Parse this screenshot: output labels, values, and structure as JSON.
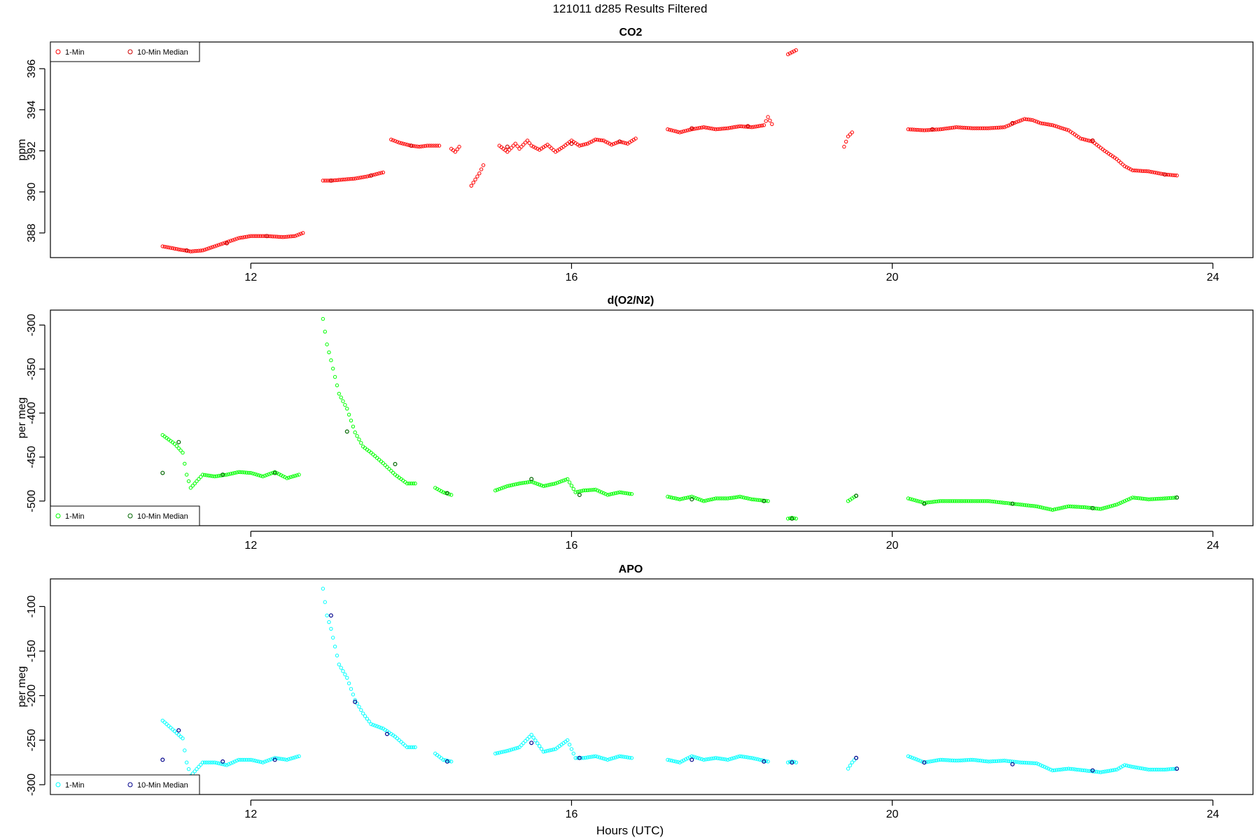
{
  "title": "121011   d285   Results Filtered",
  "xlabel": "Hours (UTC)",
  "chart_data": [
    {
      "type": "scatter",
      "title": "CO2",
      "xlabel": "Hours (UTC)",
      "ylabel": "ppm",
      "xlim": [
        9.5,
        24.5
      ],
      "ylim": [
        386.8,
        397.3
      ],
      "xticks": [
        12,
        16,
        20,
        24
      ],
      "yticks": [
        388,
        390,
        392,
        394,
        396
      ],
      "legend": {
        "position": "top-left",
        "entries": [
          "1-Min",
          "10-Min Median"
        ]
      },
      "colors": {
        "one_min": "#ff0000",
        "median": "#cc0000"
      },
      "series": [
        {
          "name": "1-Min",
          "segments": [
            {
              "x": [
                10.9,
                11.1,
                11.25,
                11.4,
                11.55,
                11.7,
                11.85,
                12.0,
                12.2,
                12.4,
                12.55,
                12.65
              ],
              "y": [
                387.35,
                387.2,
                387.1,
                387.15,
                387.35,
                387.55,
                387.75,
                387.85,
                387.85,
                387.8,
                387.85,
                388.0
              ]
            },
            {
              "x": [
                12.9,
                13.0,
                13.15,
                13.3,
                13.45,
                13.6,
                13.65
              ],
              "y": [
                390.55,
                390.55,
                390.6,
                390.65,
                390.75,
                390.9,
                390.95
              ]
            },
            {
              "x": [
                13.75,
                13.85,
                14.0,
                14.1,
                14.2,
                14.35
              ],
              "y": [
                392.55,
                392.4,
                392.25,
                392.2,
                392.25,
                392.25
              ]
            },
            {
              "x": [
                14.5,
                14.55,
                14.6
              ],
              "y": [
                392.1,
                391.95,
                392.2
              ]
            },
            {
              "x": [
                14.75,
                14.8,
                14.85,
                14.9
              ],
              "y": [
                390.3,
                390.6,
                390.9,
                391.3
              ]
            },
            {
              "x": [
                15.1,
                15.2,
                15.3,
                15.35,
                15.45,
                15.5,
                15.6,
                15.7,
                15.8,
                15.9,
                16.0,
                16.1,
                16.2,
                16.3,
                16.4,
                16.5,
                16.6,
                16.7,
                16.8
              ],
              "y": [
                392.25,
                391.95,
                392.35,
                392.1,
                392.5,
                392.25,
                392.05,
                392.3,
                391.95,
                392.2,
                392.5,
                392.25,
                392.35,
                392.55,
                392.5,
                392.3,
                392.45,
                392.35,
                392.6
              ]
            },
            {
              "x": [
                17.2,
                17.35,
                17.5,
                17.65,
                17.8,
                17.95,
                18.1,
                18.25,
                18.4,
                18.45,
                18.5
              ],
              "y": [
                393.05,
                392.9,
                393.05,
                393.15,
                393.05,
                393.1,
                393.2,
                393.15,
                393.25,
                393.65,
                393.3
              ]
            },
            {
              "x": [
                18.7,
                18.75,
                18.8
              ],
              "y": [
                396.7,
                396.8,
                396.9
              ]
            },
            {
              "x": [
                19.4,
                19.45,
                19.5
              ],
              "y": [
                392.2,
                392.7,
                392.9
              ]
            },
            {
              "x": [
                20.2,
                20.4,
                20.6,
                20.8,
                21.0,
                21.2,
                21.4,
                21.55,
                21.65,
                21.75,
                21.85,
                22.0,
                22.2,
                22.35,
                22.5,
                22.65,
                22.8,
                22.9,
                23.0,
                23.2,
                23.4,
                23.55
              ],
              "y": [
                393.05,
                393.0,
                393.05,
                393.15,
                393.1,
                393.1,
                393.15,
                393.4,
                393.55,
                393.5,
                393.35,
                393.25,
                393.0,
                392.6,
                392.45,
                392.0,
                391.6,
                391.25,
                391.05,
                391.0,
                390.85,
                390.8
              ]
            }
          ]
        },
        {
          "name": "10-Min Median",
          "segments": [
            {
              "x": [
                11.2,
                11.7,
                12.2,
                13.0,
                13.5,
                14.0,
                15.2,
                16.0,
                16.6,
                17.5,
                18.2,
                20.5,
                21.5,
                22.5,
                23.4
              ],
              "y": [
                387.15,
                387.5,
                387.85,
                390.55,
                390.8,
                392.25,
                392.2,
                392.35,
                392.45,
                393.1,
                393.2,
                393.05,
                393.35,
                392.5,
                390.85
              ]
            }
          ]
        }
      ]
    },
    {
      "type": "scatter",
      "title": "d(O2/N2)",
      "xlabel": "Hours (UTC)",
      "ylabel": "per meg",
      "xlim": [
        9.5,
        24.5
      ],
      "ylim": [
        -528,
        -283
      ],
      "xticks": [
        12,
        16,
        20,
        24
      ],
      "yticks": [
        -300,
        -350,
        -400,
        -450,
        -500
      ],
      "legend": {
        "position": "bottom-left",
        "entries": [
          "1-Min",
          "10-Min Median"
        ]
      },
      "colors": {
        "one_min": "#00ff00",
        "median": "#006600"
      },
      "series": [
        {
          "name": "1-Min",
          "segments": [
            {
              "x": [
                10.9,
                11.05,
                11.15,
                11.2,
                11.25,
                11.4,
                11.55,
                11.7,
                11.85,
                12.0,
                12.15,
                12.3,
                12.45,
                12.6
              ],
              "y": [
                -425,
                -435,
                -445,
                -470,
                -485,
                -470,
                -472,
                -470,
                -467,
                -468,
                -472,
                -467,
                -474,
                -470
              ]
            },
            {
              "x": [
                12.9,
                12.95,
                13.0,
                13.1,
                13.2,
                13.3,
                13.4,
                13.5,
                13.65,
                13.8,
                13.95,
                14.05
              ],
              "y": [
                -293,
                -322,
                -340,
                -378,
                -395,
                -422,
                -438,
                -445,
                -457,
                -470,
                -480,
                -480
              ]
            },
            {
              "x": [
                14.3,
                14.4,
                14.5
              ],
              "y": [
                -485,
                -490,
                -493
              ]
            },
            {
              "x": [
                15.05,
                15.2,
                15.35,
                15.5,
                15.65,
                15.8,
                15.95,
                16.05,
                16.15,
                16.3,
                16.45,
                16.6,
                16.75
              ],
              "y": [
                -488,
                -483,
                -480,
                -478,
                -483,
                -480,
                -475,
                -490,
                -488,
                -487,
                -493,
                -490,
                -492
              ]
            },
            {
              "x": [
                17.2,
                17.35,
                17.5,
                17.65,
                17.8,
                17.95,
                18.1,
                18.25,
                18.45
              ],
              "y": [
                -495,
                -498,
                -495,
                -500,
                -497,
                -497,
                -495,
                -498,
                -500
              ]
            },
            {
              "x": [
                18.7,
                18.75,
                18.8
              ],
              "y": [
                -520,
                -519,
                -520
              ]
            },
            {
              "x": [
                19.45,
                19.5,
                19.55
              ],
              "y": [
                -500,
                -497,
                -494
              ]
            },
            {
              "x": [
                20.2,
                20.4,
                20.6,
                20.8,
                21.0,
                21.2,
                21.4,
                21.6,
                21.8,
                22.0,
                22.2,
                22.4,
                22.6,
                22.8,
                22.9,
                23.0,
                23.2,
                23.4,
                23.55
              ],
              "y": [
                -497,
                -502,
                -500,
                -500,
                -500,
                -500,
                -502,
                -504,
                -506,
                -510,
                -506,
                -507,
                -509,
                -504,
                -500,
                -496,
                -498,
                -497,
                -496
              ]
            }
          ]
        },
        {
          "name": "10-Min Median",
          "segments": [
            {
              "x": [
                10.9,
                11.1,
                11.65,
                12.3,
                13.2,
                13.8,
                14.45,
                15.5,
                16.1,
                17.5,
                18.4,
                18.75,
                19.55,
                20.4,
                21.5,
                22.5,
                23.55
              ],
              "y": [
                -468,
                -433,
                -470,
                -468,
                -421,
                -458,
                -491,
                -475,
                -493,
                -498,
                -500,
                -520,
                -494,
                -503,
                -503,
                -508,
                -496
              ]
            }
          ]
        }
      ]
    },
    {
      "type": "scatter",
      "title": "APO",
      "xlabel": "Hours (UTC)",
      "ylabel": "per meg",
      "xlim": [
        9.5,
        24.5
      ],
      "ylim": [
        -311,
        -69
      ],
      "xticks": [
        12,
        16,
        20,
        24
      ],
      "yticks": [
        -100,
        -150,
        -200,
        -250,
        -300
      ],
      "legend": {
        "position": "bottom-left",
        "entries": [
          "1-Min",
          "10-Min Median"
        ]
      },
      "colors": {
        "one_min": "#00ffff",
        "median": "#00008b"
      },
      "series": [
        {
          "name": "1-Min",
          "segments": [
            {
              "x": [
                10.9,
                11.05,
                11.15,
                11.2,
                11.25,
                11.4,
                11.55,
                11.7,
                11.85,
                12.0,
                12.15,
                12.3,
                12.45,
                12.6
              ],
              "y": [
                -228,
                -240,
                -248,
                -275,
                -290,
                -275,
                -275,
                -278,
                -272,
                -272,
                -275,
                -270,
                -272,
                -268
              ]
            },
            {
              "x": [
                12.9,
                12.95,
                13.0,
                13.1,
                13.2,
                13.3,
                13.4,
                13.5,
                13.65,
                13.8,
                13.95,
                14.05
              ],
              "y": [
                -80,
                -110,
                -125,
                -165,
                -180,
                -205,
                -220,
                -232,
                -237,
                -246,
                -258,
                -258
              ]
            },
            {
              "x": [
                14.3,
                14.4,
                14.5
              ],
              "y": [
                -265,
                -272,
                -274
              ]
            },
            {
              "x": [
                15.05,
                15.2,
                15.35,
                15.5,
                15.65,
                15.8,
                15.95,
                16.05,
                16.15,
                16.3,
                16.45,
                16.6,
                16.75
              ],
              "y": [
                -265,
                -262,
                -258,
                -244,
                -263,
                -260,
                -250,
                -270,
                -270,
                -268,
                -272,
                -268,
                -270
              ]
            },
            {
              "x": [
                17.2,
                17.35,
                17.5,
                17.65,
                17.8,
                17.95,
                18.1,
                18.25,
                18.45
              ],
              "y": [
                -272,
                -275,
                -268,
                -272,
                -270,
                -272,
                -268,
                -270,
                -274
              ]
            },
            {
              "x": [
                18.7,
                18.75,
                18.8
              ],
              "y": [
                -275,
                -274,
                -275
              ]
            },
            {
              "x": [
                19.45,
                19.5,
                19.55
              ],
              "y": [
                -282,
                -275,
                -270
              ]
            },
            {
              "x": [
                20.2,
                20.4,
                20.6,
                20.8,
                21.0,
                21.2,
                21.4,
                21.6,
                21.8,
                22.0,
                22.2,
                22.4,
                22.6,
                22.8,
                22.9,
                23.0,
                23.2,
                23.4,
                23.55
              ],
              "y": [
                -268,
                -275,
                -272,
                -273,
                -272,
                -274,
                -273,
                -275,
                -276,
                -284,
                -282,
                -284,
                -286,
                -283,
                -278,
                -280,
                -283,
                -283,
                -282
              ]
            }
          ]
        },
        {
          "name": "10-Min Median",
          "segments": [
            {
              "x": [
                10.9,
                11.1,
                11.65,
                12.3,
                13.0,
                13.3,
                13.7,
                14.45,
                15.5,
                16.1,
                17.5,
                18.4,
                18.75,
                19.55,
                20.4,
                21.5,
                22.5,
                23.55
              ],
              "y": [
                -272,
                -239,
                -274,
                -272,
                -110,
                -207,
                -243,
                -274,
                -253,
                -270,
                -272,
                -274,
                -275,
                -270,
                -275,
                -277,
                -284,
                -282
              ]
            }
          ]
        }
      ]
    }
  ]
}
